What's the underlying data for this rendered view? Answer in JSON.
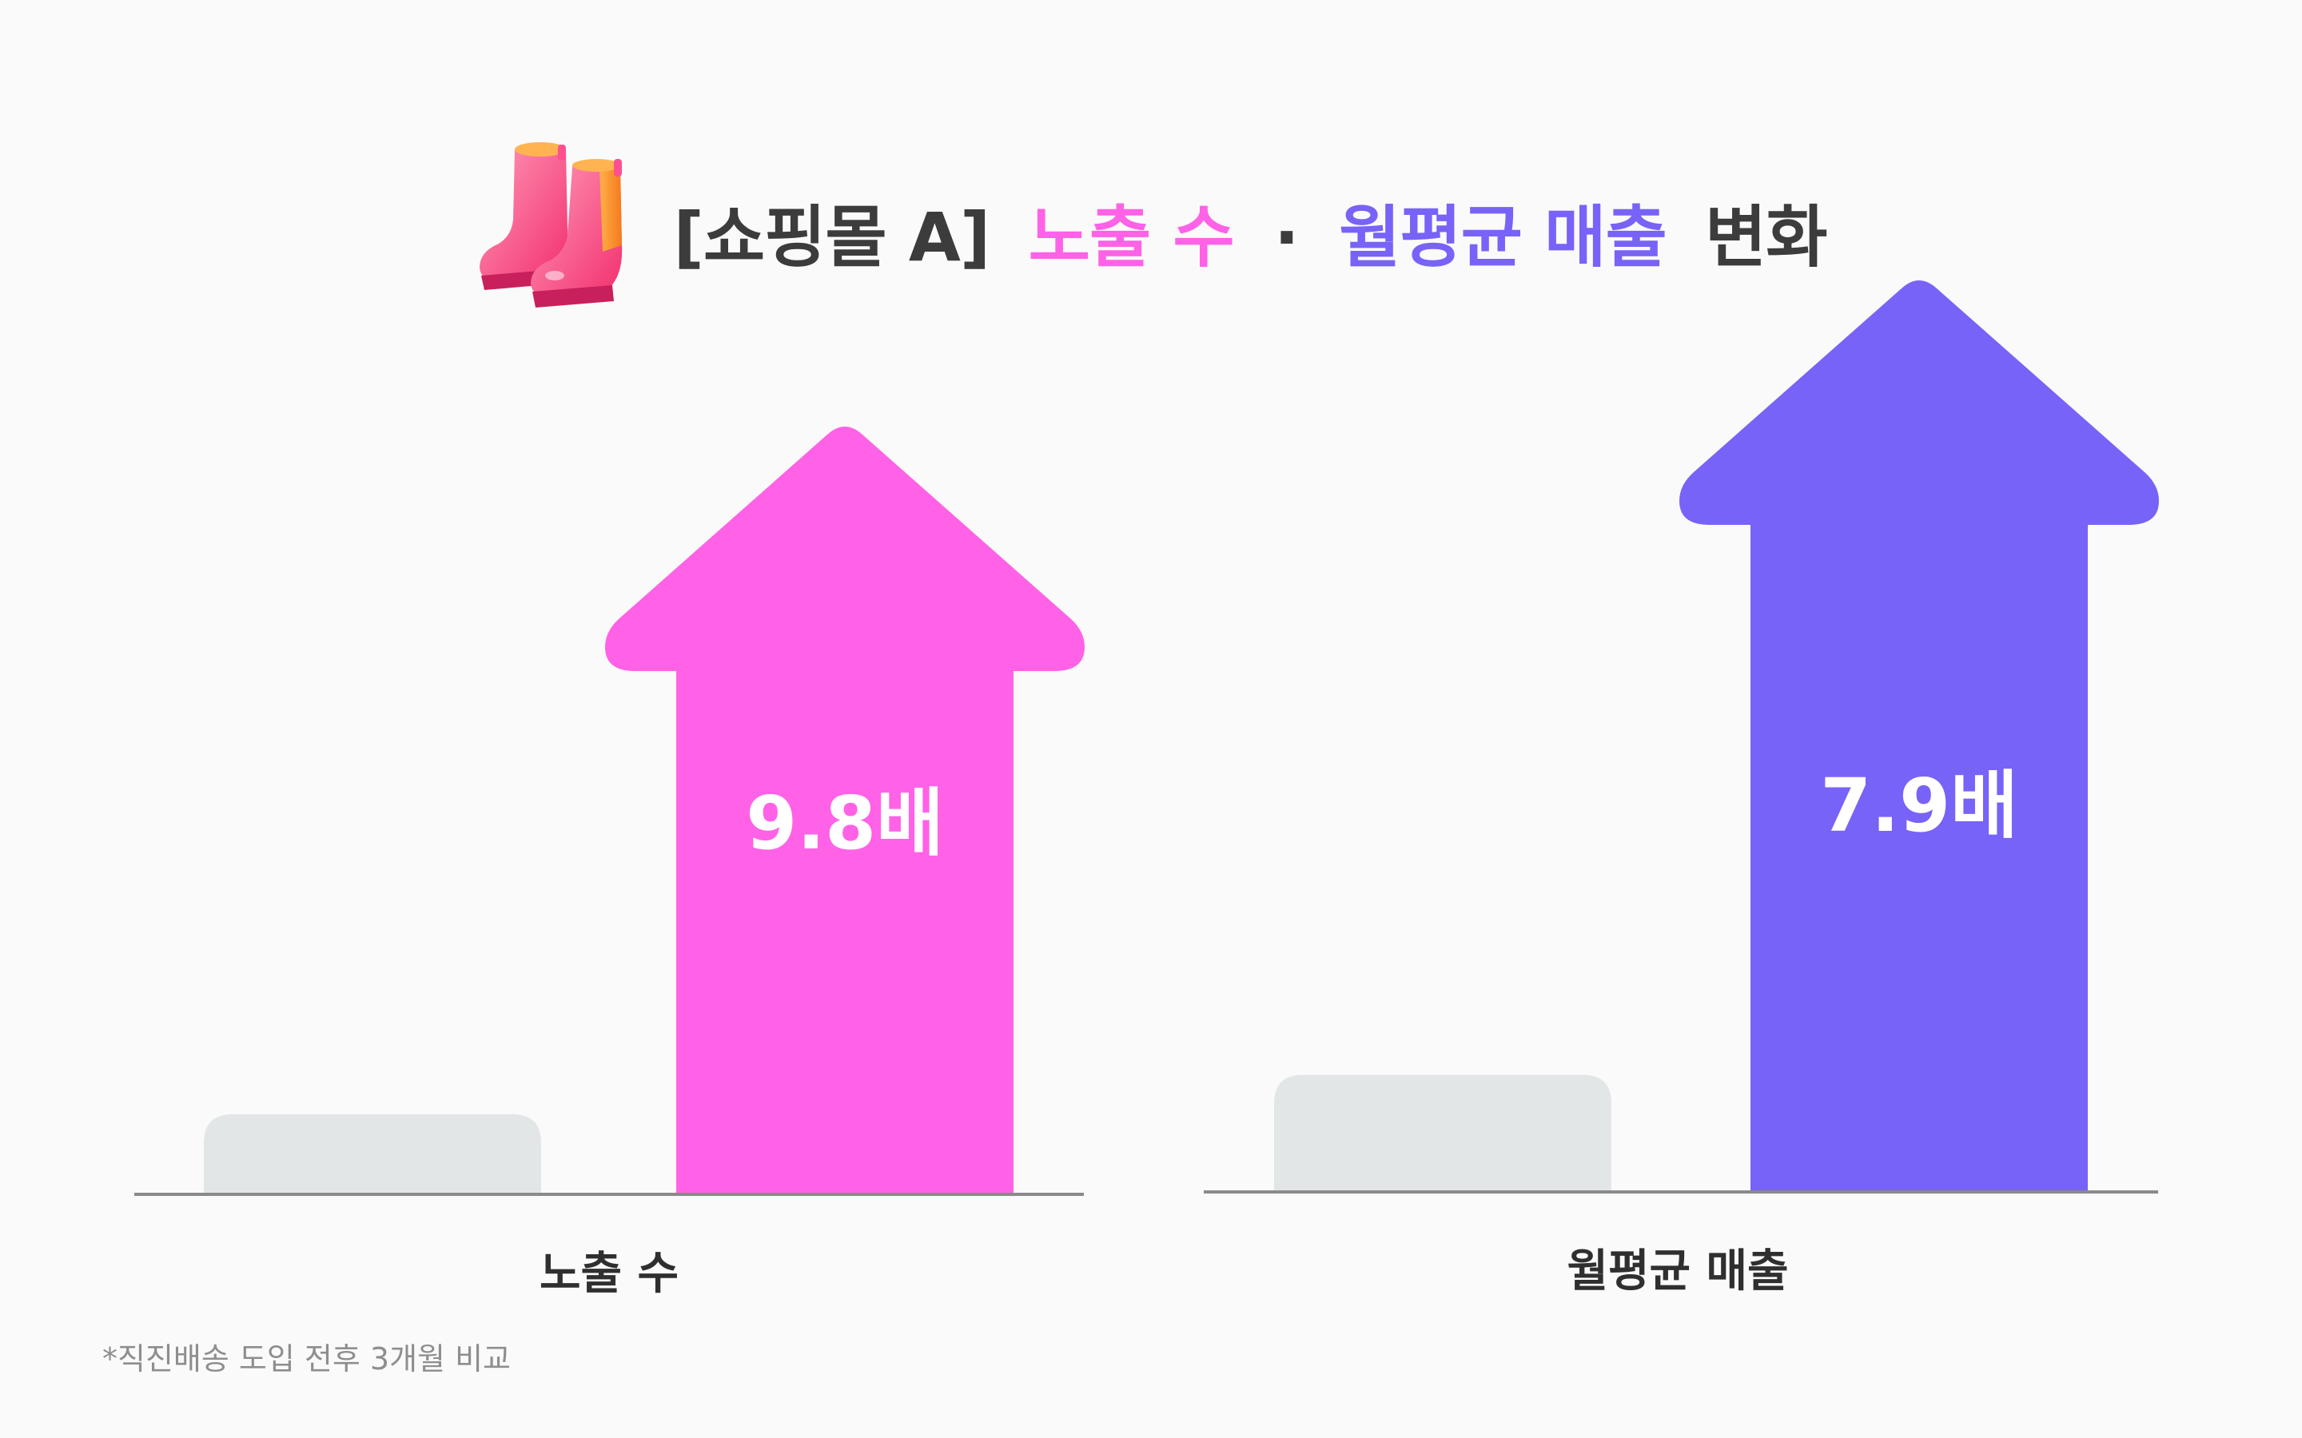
{
  "title": {
    "prefix": "[쇼핑몰 A]",
    "highlight1": "노출 수",
    "separator": "·",
    "highlight2": "월평균 매출",
    "suffix": "변화",
    "icon": "rain-boots-icon"
  },
  "colors": {
    "pink": "#ff62e6",
    "purple": "#7763f7",
    "baseline_bar": "#e2e6e6",
    "title_text": "#3c3c3c",
    "axis": "#8a8a8a"
  },
  "chart_data": {
    "type": "bar",
    "series": [
      {
        "values": [
          1,
          9.8
        ]
      },
      {
        "values": [
          1,
          7.9
        ]
      }
    ],
    "categories": [
      "노출 수",
      "월평균 매출"
    ],
    "value_labels": [
      "9.8배",
      "7.9배"
    ]
  },
  "footnote": "*직진배송 도입 전후 3개월 비교"
}
